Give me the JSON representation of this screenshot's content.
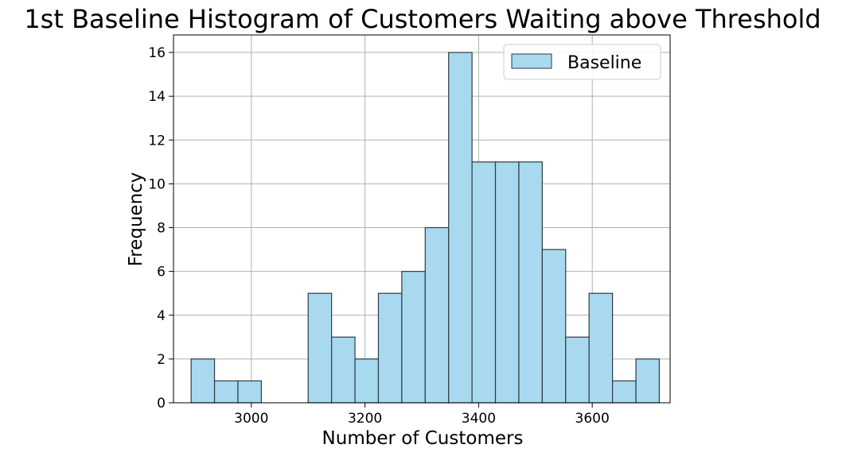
{
  "chart_data": {
    "type": "bar",
    "title": "1st Baseline Histogram of Customers Waiting above Threshold",
    "xlabel": "Number of Customers",
    "ylabel": "Frequency",
    "xlim": [
      2863,
      3737
    ],
    "ylim": [
      0,
      16.8
    ],
    "xticks": [
      3000,
      3200,
      3400,
      3600
    ],
    "yticks": [
      0,
      2,
      4,
      6,
      8,
      10,
      12,
      14,
      16
    ],
    "grid": true,
    "legend_position": "top-right",
    "bin_width": 41.2,
    "series": [
      {
        "name": "Baseline",
        "bins": [
          {
            "start": 2894.0,
            "end": 2935.2,
            "count": 2
          },
          {
            "start": 2935.2,
            "end": 2976.4,
            "count": 1
          },
          {
            "start": 2976.4,
            "end": 3017.6,
            "count": 1
          },
          {
            "start": 3017.6,
            "end": 3058.8,
            "count": 0
          },
          {
            "start": 3058.8,
            "end": 3100.0,
            "count": 0
          },
          {
            "start": 3100.0,
            "end": 3141.2,
            "count": 5
          },
          {
            "start": 3141.2,
            "end": 3182.4,
            "count": 3
          },
          {
            "start": 3182.4,
            "end": 3223.6,
            "count": 2
          },
          {
            "start": 3223.6,
            "end": 3264.8,
            "count": 5
          },
          {
            "start": 3264.8,
            "end": 3306.0,
            "count": 6
          },
          {
            "start": 3306.0,
            "end": 3347.2,
            "count": 8
          },
          {
            "start": 3347.2,
            "end": 3388.4,
            "count": 16
          },
          {
            "start": 3388.4,
            "end": 3429.6,
            "count": 11
          },
          {
            "start": 3429.6,
            "end": 3470.8,
            "count": 11
          },
          {
            "start": 3470.8,
            "end": 3512.0,
            "count": 11
          },
          {
            "start": 3512.0,
            "end": 3553.2,
            "count": 7
          },
          {
            "start": 3553.2,
            "end": 3594.4,
            "count": 3
          },
          {
            "start": 3594.4,
            "end": 3635.6,
            "count": 5
          },
          {
            "start": 3635.6,
            "end": 3676.8,
            "count": 1
          },
          {
            "start": 3676.8,
            "end": 3718.0,
            "count": 2
          }
        ]
      }
    ],
    "colors": {
      "bar_fill": "#a8d9ee",
      "bar_edge": "#2e3a44",
      "grid": "#b0b0b0",
      "axes": "#000000"
    }
  }
}
